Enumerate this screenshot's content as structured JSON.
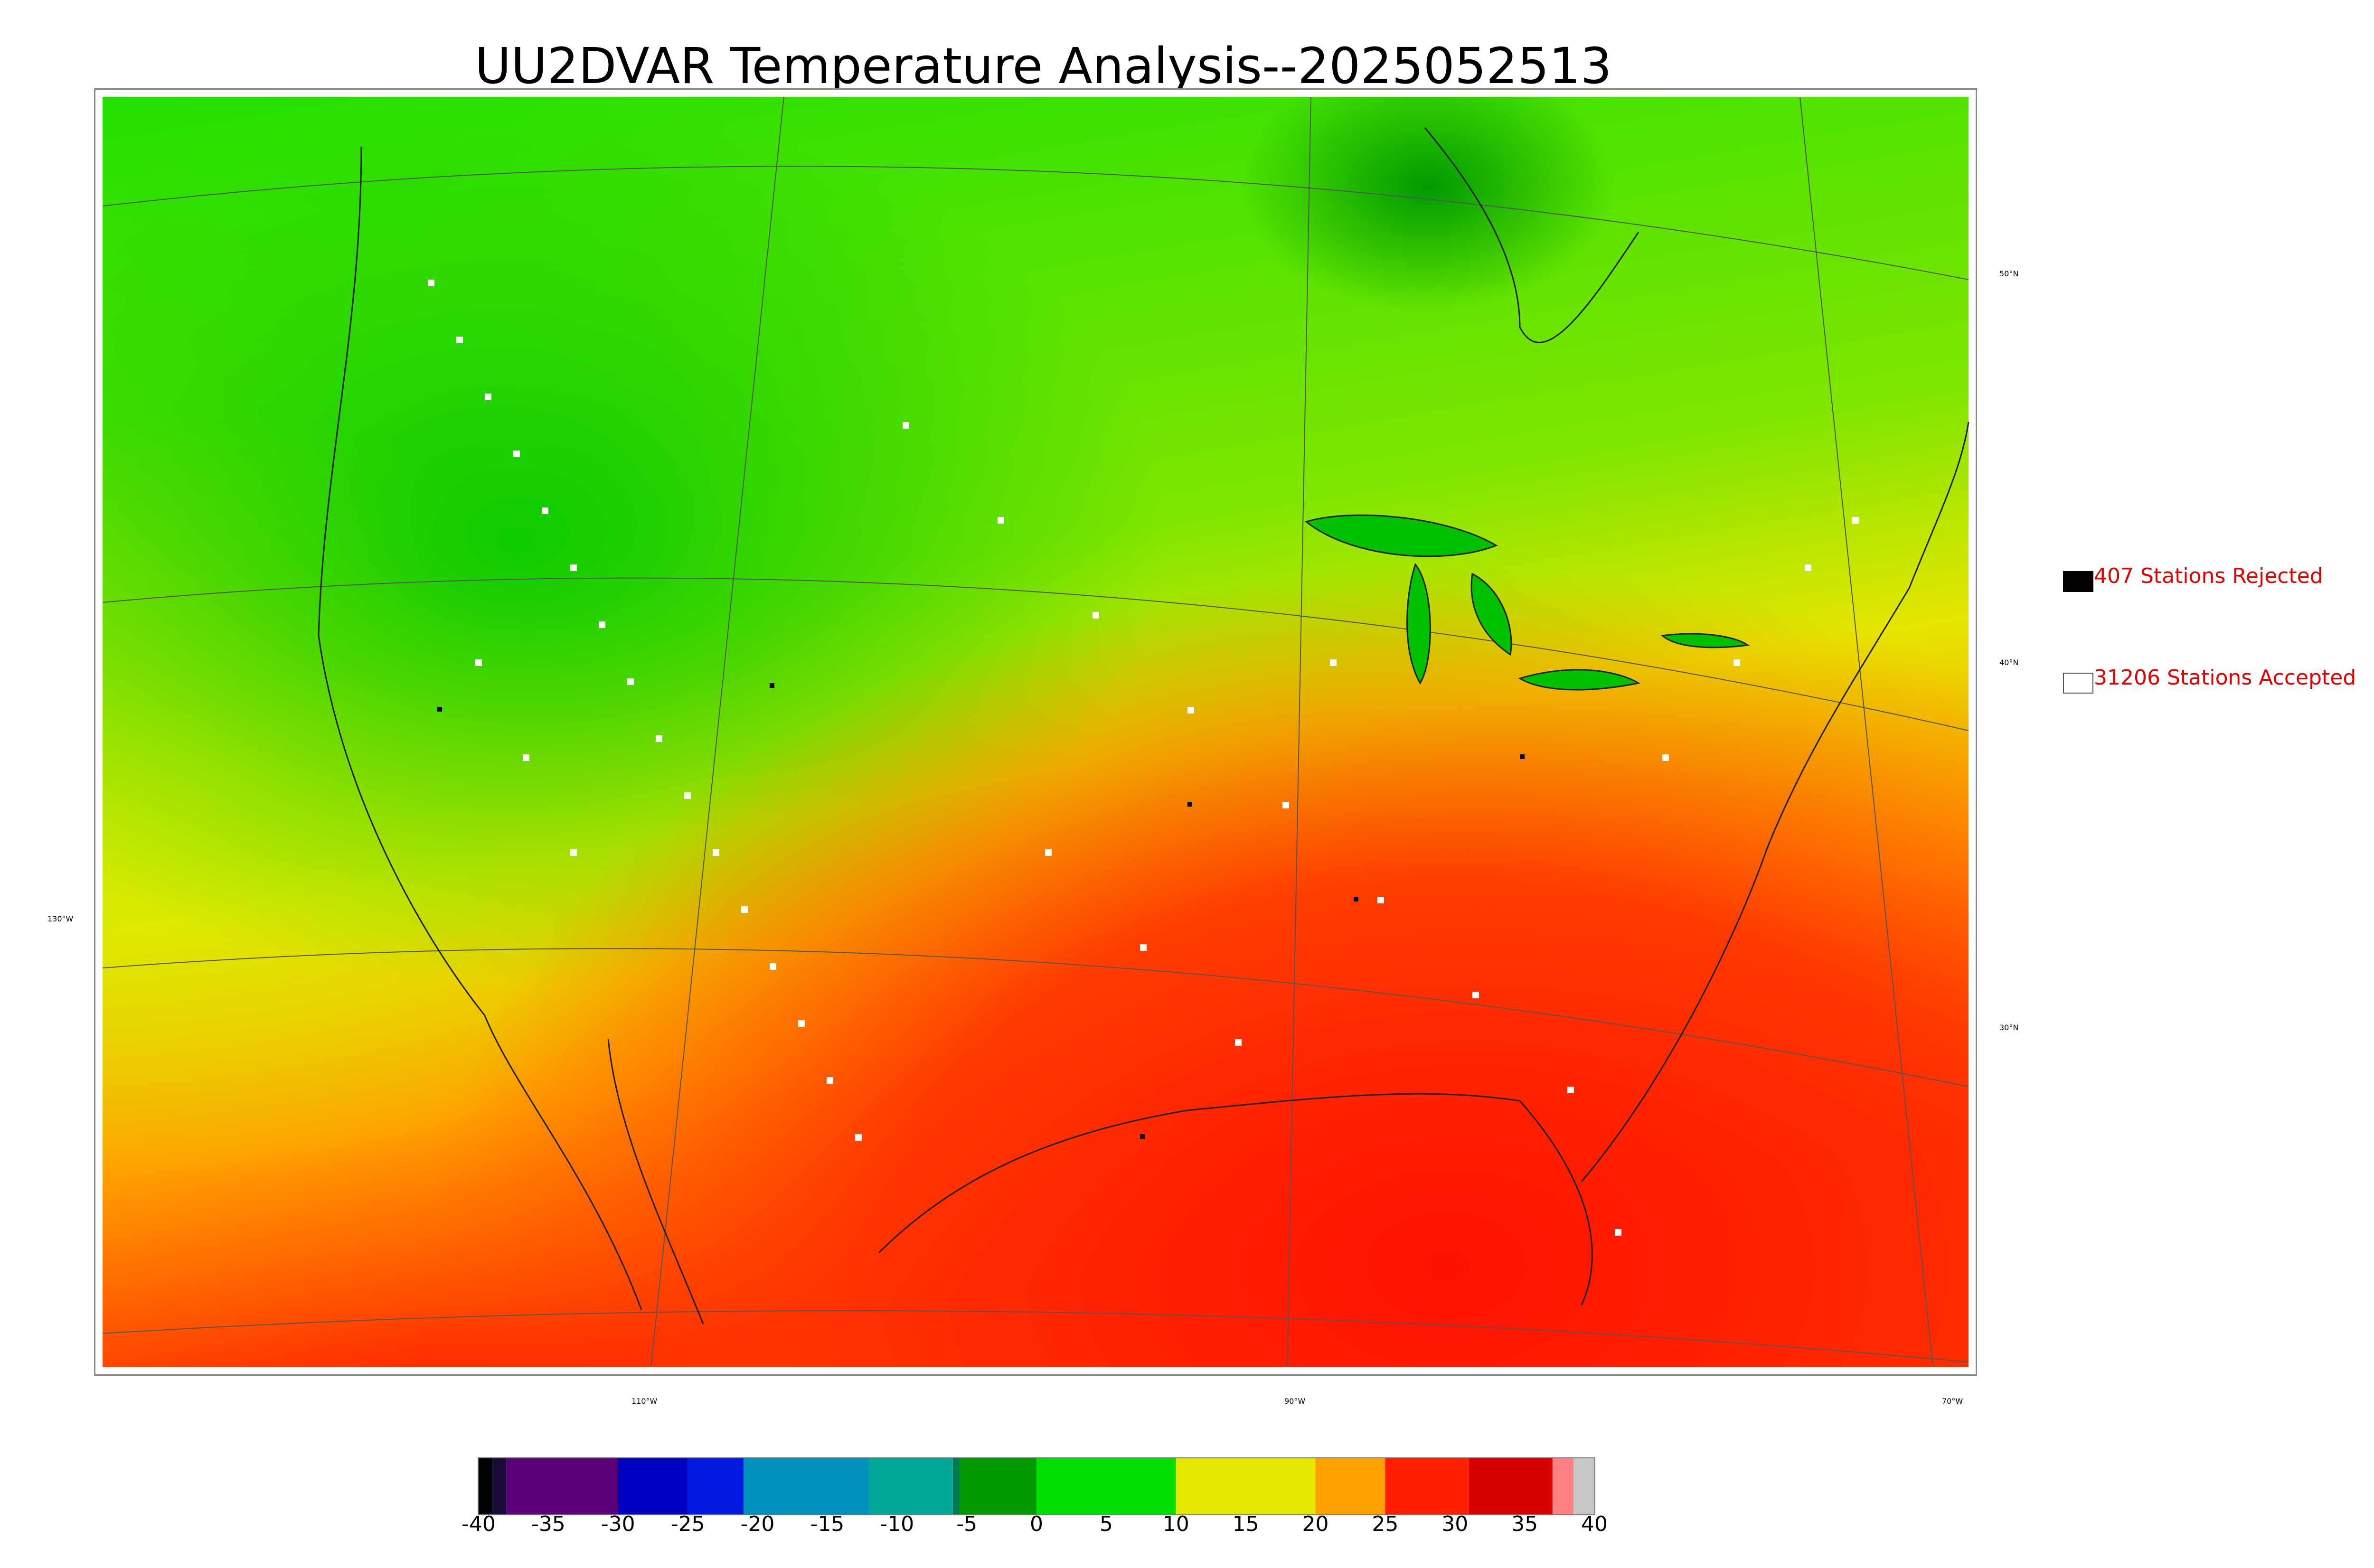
{
  "title": "UU2DVAR Temperature Analysis--2025052513",
  "map": {
    "lat_labels": [
      "50°N",
      "40°N",
      "30°N"
    ],
    "lon_labels": [
      "130°W",
      "110°W",
      "90°W",
      "70°W"
    ]
  },
  "legend": {
    "rejected": {
      "count": "407",
      "label": "407 Stations Rejected",
      "swatch_color": "#000000"
    },
    "accepted": {
      "count": "31206",
      "label": "31206 Stations Accepted",
      "swatch_color": "#ffffff"
    },
    "text_color": "#e00000"
  },
  "colorbar": {
    "unit_range": [
      -40,
      40
    ],
    "tick_labels": [
      "-40",
      "-35",
      "-30",
      "-25",
      "-20",
      "-15",
      "-10",
      "-5",
      "0",
      "5",
      "10",
      "15",
      "20",
      "25",
      "30",
      "35",
      "40"
    ],
    "colors": [
      {
        "from": -40,
        "to": -39,
        "color": "#000000"
      },
      {
        "from": -39,
        "to": -38,
        "color": "#1a0a3a"
      },
      {
        "from": -38,
        "to": -30,
        "color": "#5c007a"
      },
      {
        "from": -30,
        "to": -25,
        "color": "#0000c0"
      },
      {
        "from": -25,
        "to": -21,
        "color": "#0018e0"
      },
      {
        "from": -21,
        "to": -12,
        "color": "#0090c0"
      },
      {
        "from": -12,
        "to": -6,
        "color": "#00a898"
      },
      {
        "from": -6,
        "to": -5.5,
        "color": "#007a50"
      },
      {
        "from": -5.5,
        "to": 0,
        "color": "#009a00"
      },
      {
        "from": 0,
        "to": 10,
        "color": "#00e000"
      },
      {
        "from": 10,
        "to": 20,
        "color": "#e6e600"
      },
      {
        "from": 20,
        "to": 25,
        "color": "#ffa000"
      },
      {
        "from": 25,
        "to": 31,
        "color": "#ff2000"
      },
      {
        "from": 31,
        "to": 37,
        "color": "#d80000"
      },
      {
        "from": 37,
        "to": 38.5,
        "color": "#ff8080"
      },
      {
        "from": 38.5,
        "to": 40,
        "color": "#c8c8c8"
      }
    ]
  }
}
